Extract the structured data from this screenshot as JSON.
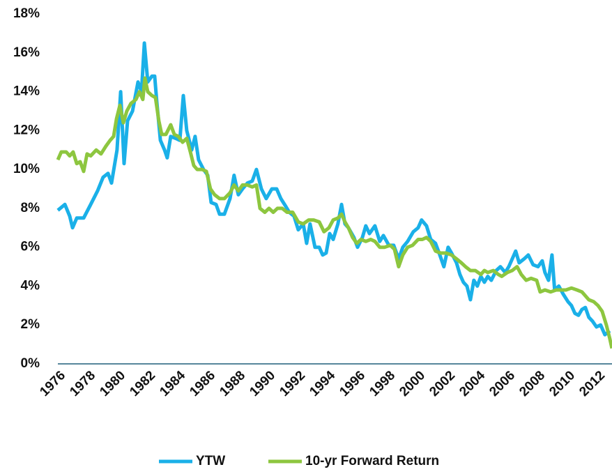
{
  "chart_data": {
    "type": "line",
    "xlim": [
      1976,
      2013
    ],
    "xticks": [
      1976,
      1978,
      1980,
      1982,
      1984,
      1986,
      1988,
      1990,
      1992,
      1994,
      1996,
      1998,
      2000,
      2002,
      2004,
      2006,
      2008,
      2010,
      2012
    ],
    "ylim": [
      0,
      18
    ],
    "yticks": [
      {
        "value": 0,
        "label": "0%"
      },
      {
        "value": 2,
        "label": "2%"
      },
      {
        "value": 4,
        "label": "4%"
      },
      {
        "value": 6,
        "label": "6%"
      },
      {
        "value": 8,
        "label": "8%"
      },
      {
        "value": 10,
        "label": "10%"
      },
      {
        "value": 12,
        "label": "12%"
      },
      {
        "value": 14,
        "label": "14%"
      },
      {
        "value": 16,
        "label": "16%"
      },
      {
        "value": 18,
        "label": "18%"
      }
    ],
    "grid": false,
    "legend": "bottom",
    "series": [
      {
        "name": "YTW",
        "color": "#1ab0e8",
        "x": [
          1976.0,
          1976.47,
          1976.79,
          1976.98,
          1977.26,
          1977.72,
          1978.19,
          1978.65,
          1979.02,
          1979.35,
          1979.58,
          1979.95,
          1980.19,
          1980.42,
          1980.65,
          1980.98,
          1981.35,
          1981.58,
          1981.77,
          1982.0,
          1982.28,
          1982.46,
          1982.6,
          1982.84,
          1983.12,
          1983.3,
          1983.53,
          1983.86,
          1984.14,
          1984.37,
          1984.6,
          1984.93,
          1985.16,
          1985.39,
          1985.72,
          1986.0,
          1986.23,
          1986.56,
          1986.79,
          1987.11,
          1987.49,
          1987.76,
          1988.04,
          1988.32,
          1988.65,
          1988.97,
          1989.25,
          1989.58,
          1989.9,
          1990.28,
          1990.6,
          1990.88,
          1991.21,
          1991.44,
          1991.76,
          1992.04,
          1992.37,
          1992.6,
          1992.83,
          1993.16,
          1993.44,
          1993.67,
          1993.9,
          1994.14,
          1994.37,
          1994.69,
          1994.93,
          1995.16,
          1995.39,
          1995.76,
          1996.0,
          1996.32,
          1996.55,
          1996.79,
          1997.16,
          1997.48,
          1997.72,
          1998.09,
          1998.41,
          1998.74,
          1999.02,
          1999.34,
          1999.72,
          2000.04,
          2000.27,
          2000.6,
          2000.88,
          2001.2,
          2001.44,
          2001.76,
          2002.04,
          2002.27,
          2002.6,
          2002.83,
          2003.06,
          2003.3,
          2003.53,
          2003.76,
          2003.99,
          2004.23,
          2004.46,
          2004.69,
          2004.92,
          2005.25,
          2005.53,
          2005.85,
          2006.09,
          2006.32,
          2006.55,
          2006.78,
          2007.11,
          2007.39,
          2007.71,
          2008.04,
          2008.32,
          2008.5,
          2008.74,
          2008.97,
          2009.15,
          2009.43,
          2009.71,
          2010.04,
          2010.27,
          2010.5,
          2010.74,
          2010.97,
          2011.2,
          2011.43,
          2011.67,
          2011.94,
          2012.22,
          2012.5,
          2012.83
        ],
        "values": [
          7.9,
          8.2,
          7.6,
          7.0,
          7.5,
          7.5,
          8.2,
          8.9,
          9.6,
          9.8,
          9.3,
          11.0,
          14.0,
          10.3,
          12.5,
          13.0,
          14.5,
          14.0,
          16.5,
          14.5,
          14.8,
          14.8,
          13.5,
          11.5,
          11.0,
          10.6,
          11.7,
          11.6,
          11.5,
          13.8,
          12.0,
          11.0,
          11.7,
          10.5,
          10.0,
          9.7,
          8.3,
          8.2,
          7.7,
          7.7,
          8.5,
          9.7,
          8.7,
          9.0,
          9.3,
          9.4,
          10.0,
          9.0,
          8.5,
          9.0,
          9.0,
          8.5,
          8.1,
          7.8,
          7.6,
          6.9,
          7.2,
          6.2,
          7.2,
          6.0,
          6.0,
          5.6,
          5.7,
          6.7,
          6.4,
          7.2,
          8.2,
          7.2,
          7.0,
          6.5,
          6.0,
          6.5,
          7.1,
          6.7,
          7.1,
          6.3,
          6.6,
          6.1,
          6.1,
          5.4,
          6.0,
          6.3,
          6.8,
          7.0,
          7.4,
          7.1,
          6.4,
          6.2,
          5.7,
          5.0,
          6.0,
          5.7,
          5.2,
          4.6,
          4.2,
          4.0,
          3.3,
          4.3,
          4.0,
          4.5,
          4.2,
          4.5,
          4.3,
          4.8,
          5.0,
          4.7,
          5.0,
          5.4,
          5.8,
          5.2,
          5.4,
          5.6,
          5.1,
          5.0,
          5.3,
          4.7,
          4.3,
          5.6,
          3.8,
          4.0,
          3.6,
          3.2,
          3.0,
          2.6,
          2.5,
          2.8,
          2.9,
          2.4,
          2.2,
          1.9,
          2.0,
          1.5,
          1.7
        ]
      },
      {
        "name": "10-yr Forward Return",
        "color": "#8dc63f",
        "x": [
          1976.0,
          1976.23,
          1976.56,
          1976.79,
          1977.02,
          1977.26,
          1977.49,
          1977.72,
          1977.95,
          1978.19,
          1978.56,
          1978.88,
          1979.21,
          1979.49,
          1979.72,
          1979.91,
          1980.14,
          1980.37,
          1980.6,
          1980.88,
          1981.21,
          1981.44,
          1981.67,
          1981.81,
          1982.0,
          1982.28,
          1982.51,
          1982.74,
          1982.93,
          1983.21,
          1983.53,
          1983.77,
          1984.04,
          1984.32,
          1984.6,
          1984.84,
          1985.07,
          1985.3,
          1985.63,
          1985.91,
          1986.18,
          1986.46,
          1986.79,
          1987.11,
          1987.49,
          1987.76,
          1988.04,
          1988.32,
          1988.65,
          1988.97,
          1989.25,
          1989.49,
          1989.81,
          1990.09,
          1990.37,
          1990.65,
          1990.97,
          1991.3,
          1991.67,
          1992.04,
          1992.37,
          1992.74,
          1993.07,
          1993.44,
          1993.76,
          1994.09,
          1994.37,
          1994.69,
          1994.93,
          1995.16,
          1995.39,
          1995.67,
          1995.95,
          1996.23,
          1996.55,
          1996.88,
          1997.16,
          1997.48,
          1997.81,
          1998.18,
          1998.46,
          1998.74,
          1999.02,
          1999.34,
          1999.67,
          2000.04,
          2000.32,
          2000.6,
          2000.88,
          2001.2,
          2001.53,
          2001.9,
          2002.27,
          2002.6,
          2002.92,
          2003.2,
          2003.53,
          2003.85,
          2004.23,
          2004.46,
          2004.69,
          2005.06,
          2005.39,
          2005.62,
          2005.99,
          2006.32,
          2006.64,
          2006.92,
          2007.25,
          2007.57,
          2007.95,
          2008.18,
          2008.5,
          2008.88,
          2009.25,
          2009.57,
          2009.9,
          2010.27,
          2010.64,
          2010.97,
          2011.2,
          2011.43,
          2011.76,
          2012.04,
          2012.32,
          2012.6,
          2012.83,
          2012.97
        ],
        "values": [
          10.5,
          10.9,
          10.9,
          10.7,
          10.9,
          10.3,
          10.4,
          9.9,
          10.8,
          10.7,
          11.0,
          10.8,
          11.2,
          11.5,
          11.7,
          12.6,
          13.3,
          12.4,
          13.0,
          13.4,
          13.6,
          14.0,
          13.6,
          14.7,
          14.0,
          13.8,
          13.7,
          12.5,
          11.8,
          11.8,
          12.3,
          11.8,
          11.7,
          11.4,
          11.6,
          10.9,
          10.2,
          10.0,
          10.0,
          9.9,
          9.0,
          8.7,
          8.5,
          8.5,
          8.8,
          9.2,
          8.9,
          9.2,
          9.2,
          9.1,
          9.2,
          8.0,
          7.8,
          8.0,
          7.8,
          8.0,
          8.0,
          7.8,
          7.8,
          7.3,
          7.2,
          7.4,
          7.4,
          7.3,
          6.8,
          7.0,
          7.4,
          7.5,
          7.7,
          7.3,
          7.0,
          6.5,
          6.2,
          6.4,
          6.3,
          6.4,
          6.3,
          6.0,
          6.0,
          6.1,
          5.9,
          5.0,
          5.6,
          6.0,
          6.1,
          6.4,
          6.4,
          6.5,
          6.3,
          5.8,
          5.7,
          5.7,
          5.6,
          5.4,
          5.2,
          5.0,
          4.8,
          4.8,
          4.6,
          4.8,
          4.7,
          4.8,
          4.6,
          4.5,
          4.7,
          4.8,
          5.0,
          4.6,
          4.3,
          4.4,
          4.3,
          3.7,
          3.8,
          3.7,
          3.8,
          3.8,
          3.8,
          3.9,
          3.8,
          3.7,
          3.5,
          3.3,
          3.2,
          3.0,
          2.7,
          2.0,
          1.3,
          0.8
        ]
      }
    ]
  }
}
